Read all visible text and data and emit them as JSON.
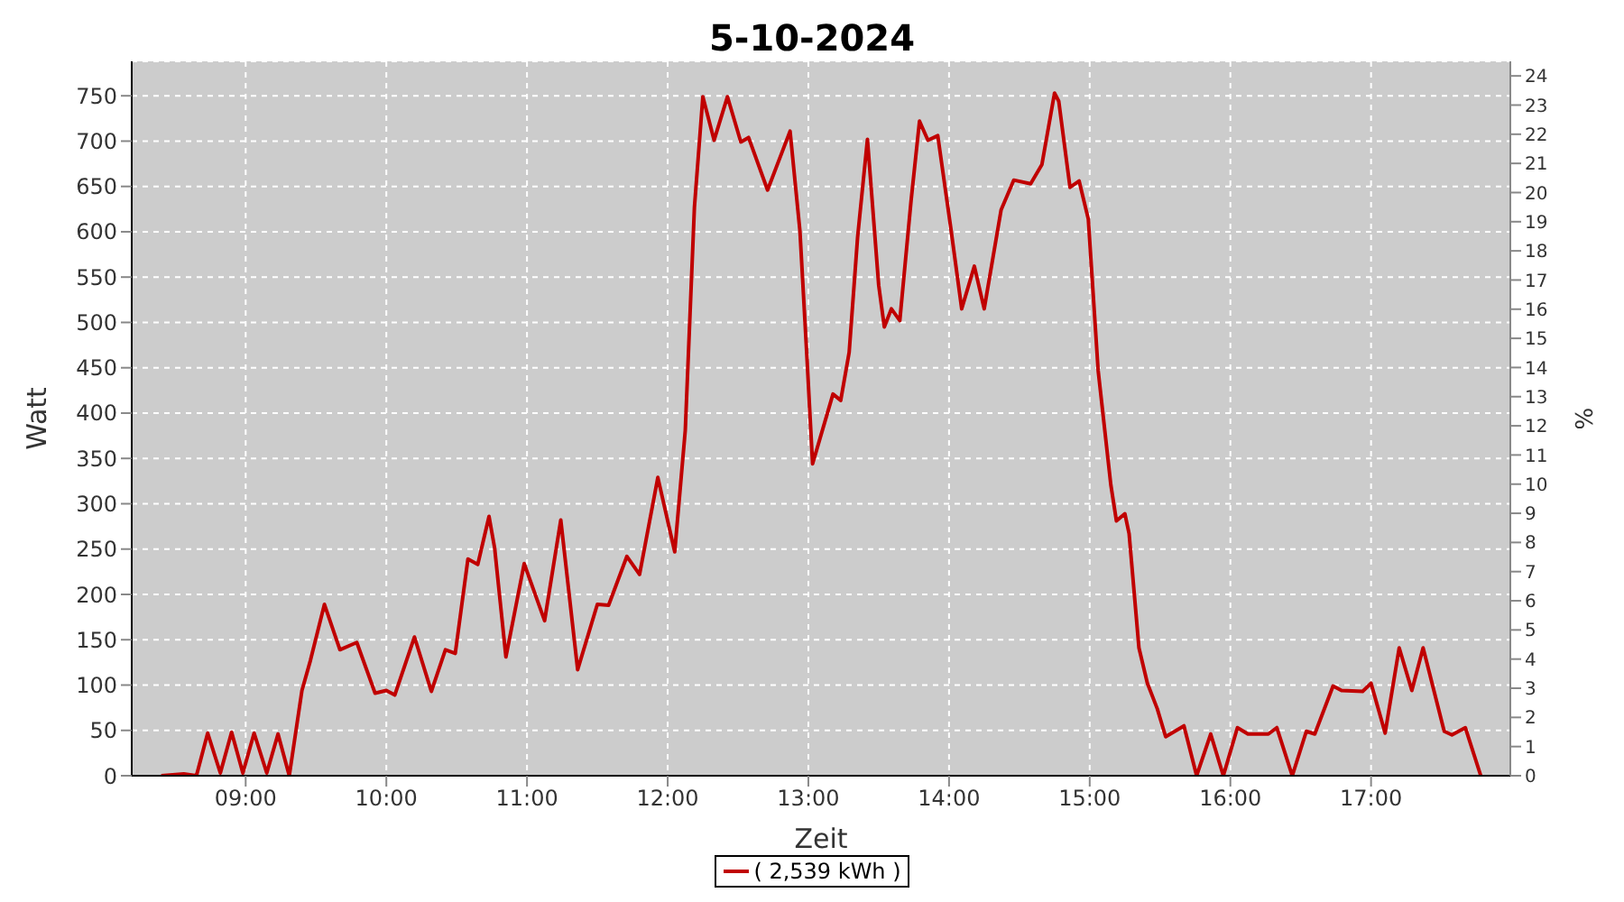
{
  "chart_data": {
    "type": "line",
    "title": "5-10-2024",
    "xlabel": "Zeit",
    "ylabel": "Watt",
    "y2label": "%",
    "x": [
      8.4,
      8.56,
      8.65,
      8.73,
      8.82,
      8.9,
      8.98,
      9.06,
      9.15,
      9.23,
      9.31,
      9.4,
      9.46,
      9.56,
      9.67,
      9.79,
      9.92,
      10.0,
      10.06,
      10.2,
      10.32,
      10.42,
      10.49,
      10.58,
      10.65,
      10.73,
      10.77,
      10.85,
      10.98,
      11.125,
      11.24,
      11.36,
      11.5,
      11.58,
      11.71,
      11.8,
      11.93,
      12.05,
      12.125,
      12.19,
      12.25,
      12.33,
      12.425,
      12.52,
      12.575,
      12.71,
      12.87,
      12.94,
      12.99,
      13.03,
      13.175,
      13.23,
      13.29,
      13.35,
      13.42,
      13.5,
      13.54,
      13.59,
      13.65,
      13.73,
      13.79,
      13.85,
      13.92,
      14.01,
      14.09,
      14.18,
      14.25,
      14.37,
      14.46,
      14.58,
      14.66,
      14.75,
      14.78,
      14.86,
      14.925,
      14.99,
      15.06,
      15.15,
      15.19,
      15.25,
      15.28,
      15.35,
      15.41,
      15.48,
      15.54,
      15.67,
      15.76,
      15.86,
      15.95,
      16.05,
      16.125,
      16.27,
      16.33,
      16.44,
      16.54,
      16.6,
      16.73,
      16.79,
      16.94,
      17.0,
      17.1,
      17.2,
      17.29,
      17.37,
      17.52,
      17.575,
      17.67,
      17.78
    ],
    "series": [
      {
        "name": "( 2,539 kWh )",
        "color": "#c00000",
        "values": [
          0,
          2,
          0,
          47,
          3,
          48,
          3,
          47,
          3,
          46,
          0,
          94,
          127,
          189,
          139,
          147,
          91,
          94,
          89,
          153,
          93,
          139,
          135,
          239,
          233,
          286,
          251,
          131,
          234,
          171,
          282,
          117,
          189,
          188,
          242,
          222,
          329,
          247,
          381,
          627,
          749,
          701,
          749,
          699,
          704,
          646,
          711,
          601,
          461,
          344,
          421,
          414,
          467,
          594,
          702,
          541,
          495,
          515,
          502,
          634,
          722,
          701,
          706,
          607,
          515,
          562,
          515,
          624,
          657,
          653,
          674,
          753,
          744,
          649,
          656,
          614,
          447,
          321,
          281,
          289,
          267,
          141,
          102,
          74,
          43,
          55,
          0,
          46,
          0,
          53,
          46,
          46,
          53,
          0,
          49,
          46,
          99,
          94,
          93,
          102,
          47,
          141,
          94,
          141,
          49,
          45,
          53,
          0
        ]
      }
    ],
    "xlim": [
      8.19,
      17.99
    ],
    "xticks": [
      {
        "value": 9,
        "label": "09:00"
      },
      {
        "value": 10,
        "label": "10:00"
      },
      {
        "value": 11,
        "label": "11:00"
      },
      {
        "value": 12,
        "label": "12:00"
      },
      {
        "value": 13,
        "label": "13:00"
      },
      {
        "value": 14,
        "label": "14:00"
      },
      {
        "value": 15,
        "label": "15:00"
      },
      {
        "value": 16,
        "label": "16:00"
      },
      {
        "value": 17,
        "label": "17:00"
      }
    ],
    "ylim": [
      0,
      788
    ],
    "yticks": [
      0,
      50,
      100,
      150,
      200,
      250,
      300,
      350,
      400,
      450,
      500,
      550,
      600,
      650,
      700,
      750
    ],
    "y2lim": [
      0,
      24.5
    ],
    "y2ticks": [
      0,
      1,
      2,
      3,
      4,
      5,
      6,
      7,
      8,
      9,
      10,
      11,
      12,
      13,
      14,
      15,
      16,
      17,
      18,
      19,
      20,
      21,
      22,
      23,
      24
    ],
    "grid": true,
    "legend": "bottom",
    "marker": "none"
  }
}
